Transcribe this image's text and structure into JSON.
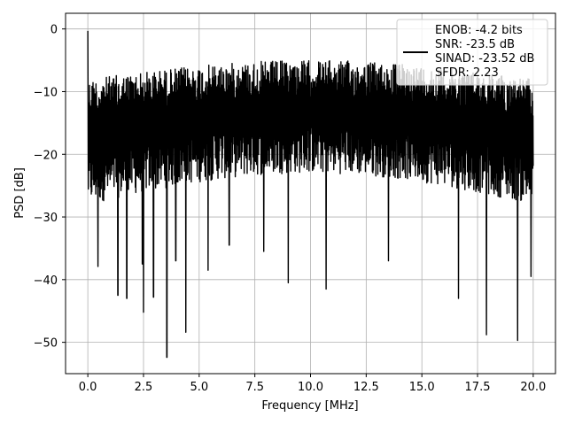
{
  "chart_data": {
    "type": "line",
    "title": "",
    "xlabel": "Frequency [MHz]",
    "ylabel": "PSD [dB]",
    "xlim": [
      -1.0,
      21.0
    ],
    "ylim": [
      -55,
      2.5
    ],
    "x_ticks": [
      0.0,
      2.5,
      5.0,
      7.5,
      10.0,
      12.5,
      15.0,
      17.5,
      20.0
    ],
    "x_tick_labels": [
      "0.0",
      "2.5",
      "5.0",
      "7.5",
      "10.0",
      "12.5",
      "15.0",
      "17.5",
      "20.0"
    ],
    "y_ticks": [
      0,
      -10,
      -20,
      -30,
      -40,
      -50
    ],
    "y_tick_labels": [
      "0",
      "−10",
      "−20",
      "−30",
      "−40",
      "−50"
    ],
    "grid": true,
    "legend_position": "upper right",
    "series": [
      {
        "color": "#000000",
        "x_range": [
          0.0,
          20.0
        ],
        "band_upper": [
          -8,
          -5
        ],
        "band_lower": [
          -28,
          -23
        ],
        "peak": {
          "x": 0.0,
          "y": -0.3
        },
        "dips": [
          {
            "x": 0.45,
            "y": -37.9
          },
          {
            "x": 1.35,
            "y": -42.5
          },
          {
            "x": 1.75,
            "y": -43.0
          },
          {
            "x": 2.45,
            "y": -37.5
          },
          {
            "x": 2.5,
            "y": -45.2
          },
          {
            "x": 2.95,
            "y": -42.8
          },
          {
            "x": 3.55,
            "y": -52.4
          },
          {
            "x": 3.95,
            "y": -37.0
          },
          {
            "x": 4.4,
            "y": -48.4
          },
          {
            "x": 5.4,
            "y": -38.5
          },
          {
            "x": 6.35,
            "y": -34.5
          },
          {
            "x": 7.9,
            "y": -35.5
          },
          {
            "x": 9.0,
            "y": -40.5
          },
          {
            "x": 10.7,
            "y": -41.5
          },
          {
            "x": 13.5,
            "y": -37.0
          },
          {
            "x": 16.65,
            "y": -43.0
          },
          {
            "x": 17.9,
            "y": -48.8
          },
          {
            "x": 19.3,
            "y": -49.7
          },
          {
            "x": 19.9,
            "y": -39.5
          }
        ]
      }
    ],
    "legend_lines": [
      "ENOB: -4.2 bits",
      "SNR: -23.5 dB",
      "SINAD: -23.52 dB",
      "SFDR: 2.23"
    ]
  }
}
